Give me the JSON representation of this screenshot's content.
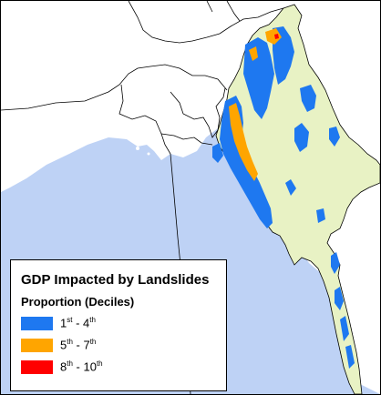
{
  "legend": {
    "title": "GDP Impacted by Landslides",
    "subtitle": "Proportion (Deciles)",
    "items": [
      {
        "from_num": "1",
        "from_suffix": "st",
        "to_num": "4",
        "to_suffix": "th",
        "color": "#1e78f0"
      },
      {
        "from_num": "5",
        "from_suffix": "th",
        "to_num": "7",
        "to_suffix": "th",
        "color": "#ffa500"
      },
      {
        "from_num": "8",
        "from_suffix": "th",
        "to_num": "10",
        "to_suffix": "th",
        "color": "#ff0000"
      }
    ]
  },
  "colors": {
    "sea": "#bed2f5",
    "country": "#e8f2c4",
    "neighbor_land": "#ffffff",
    "border": "#000000"
  }
}
